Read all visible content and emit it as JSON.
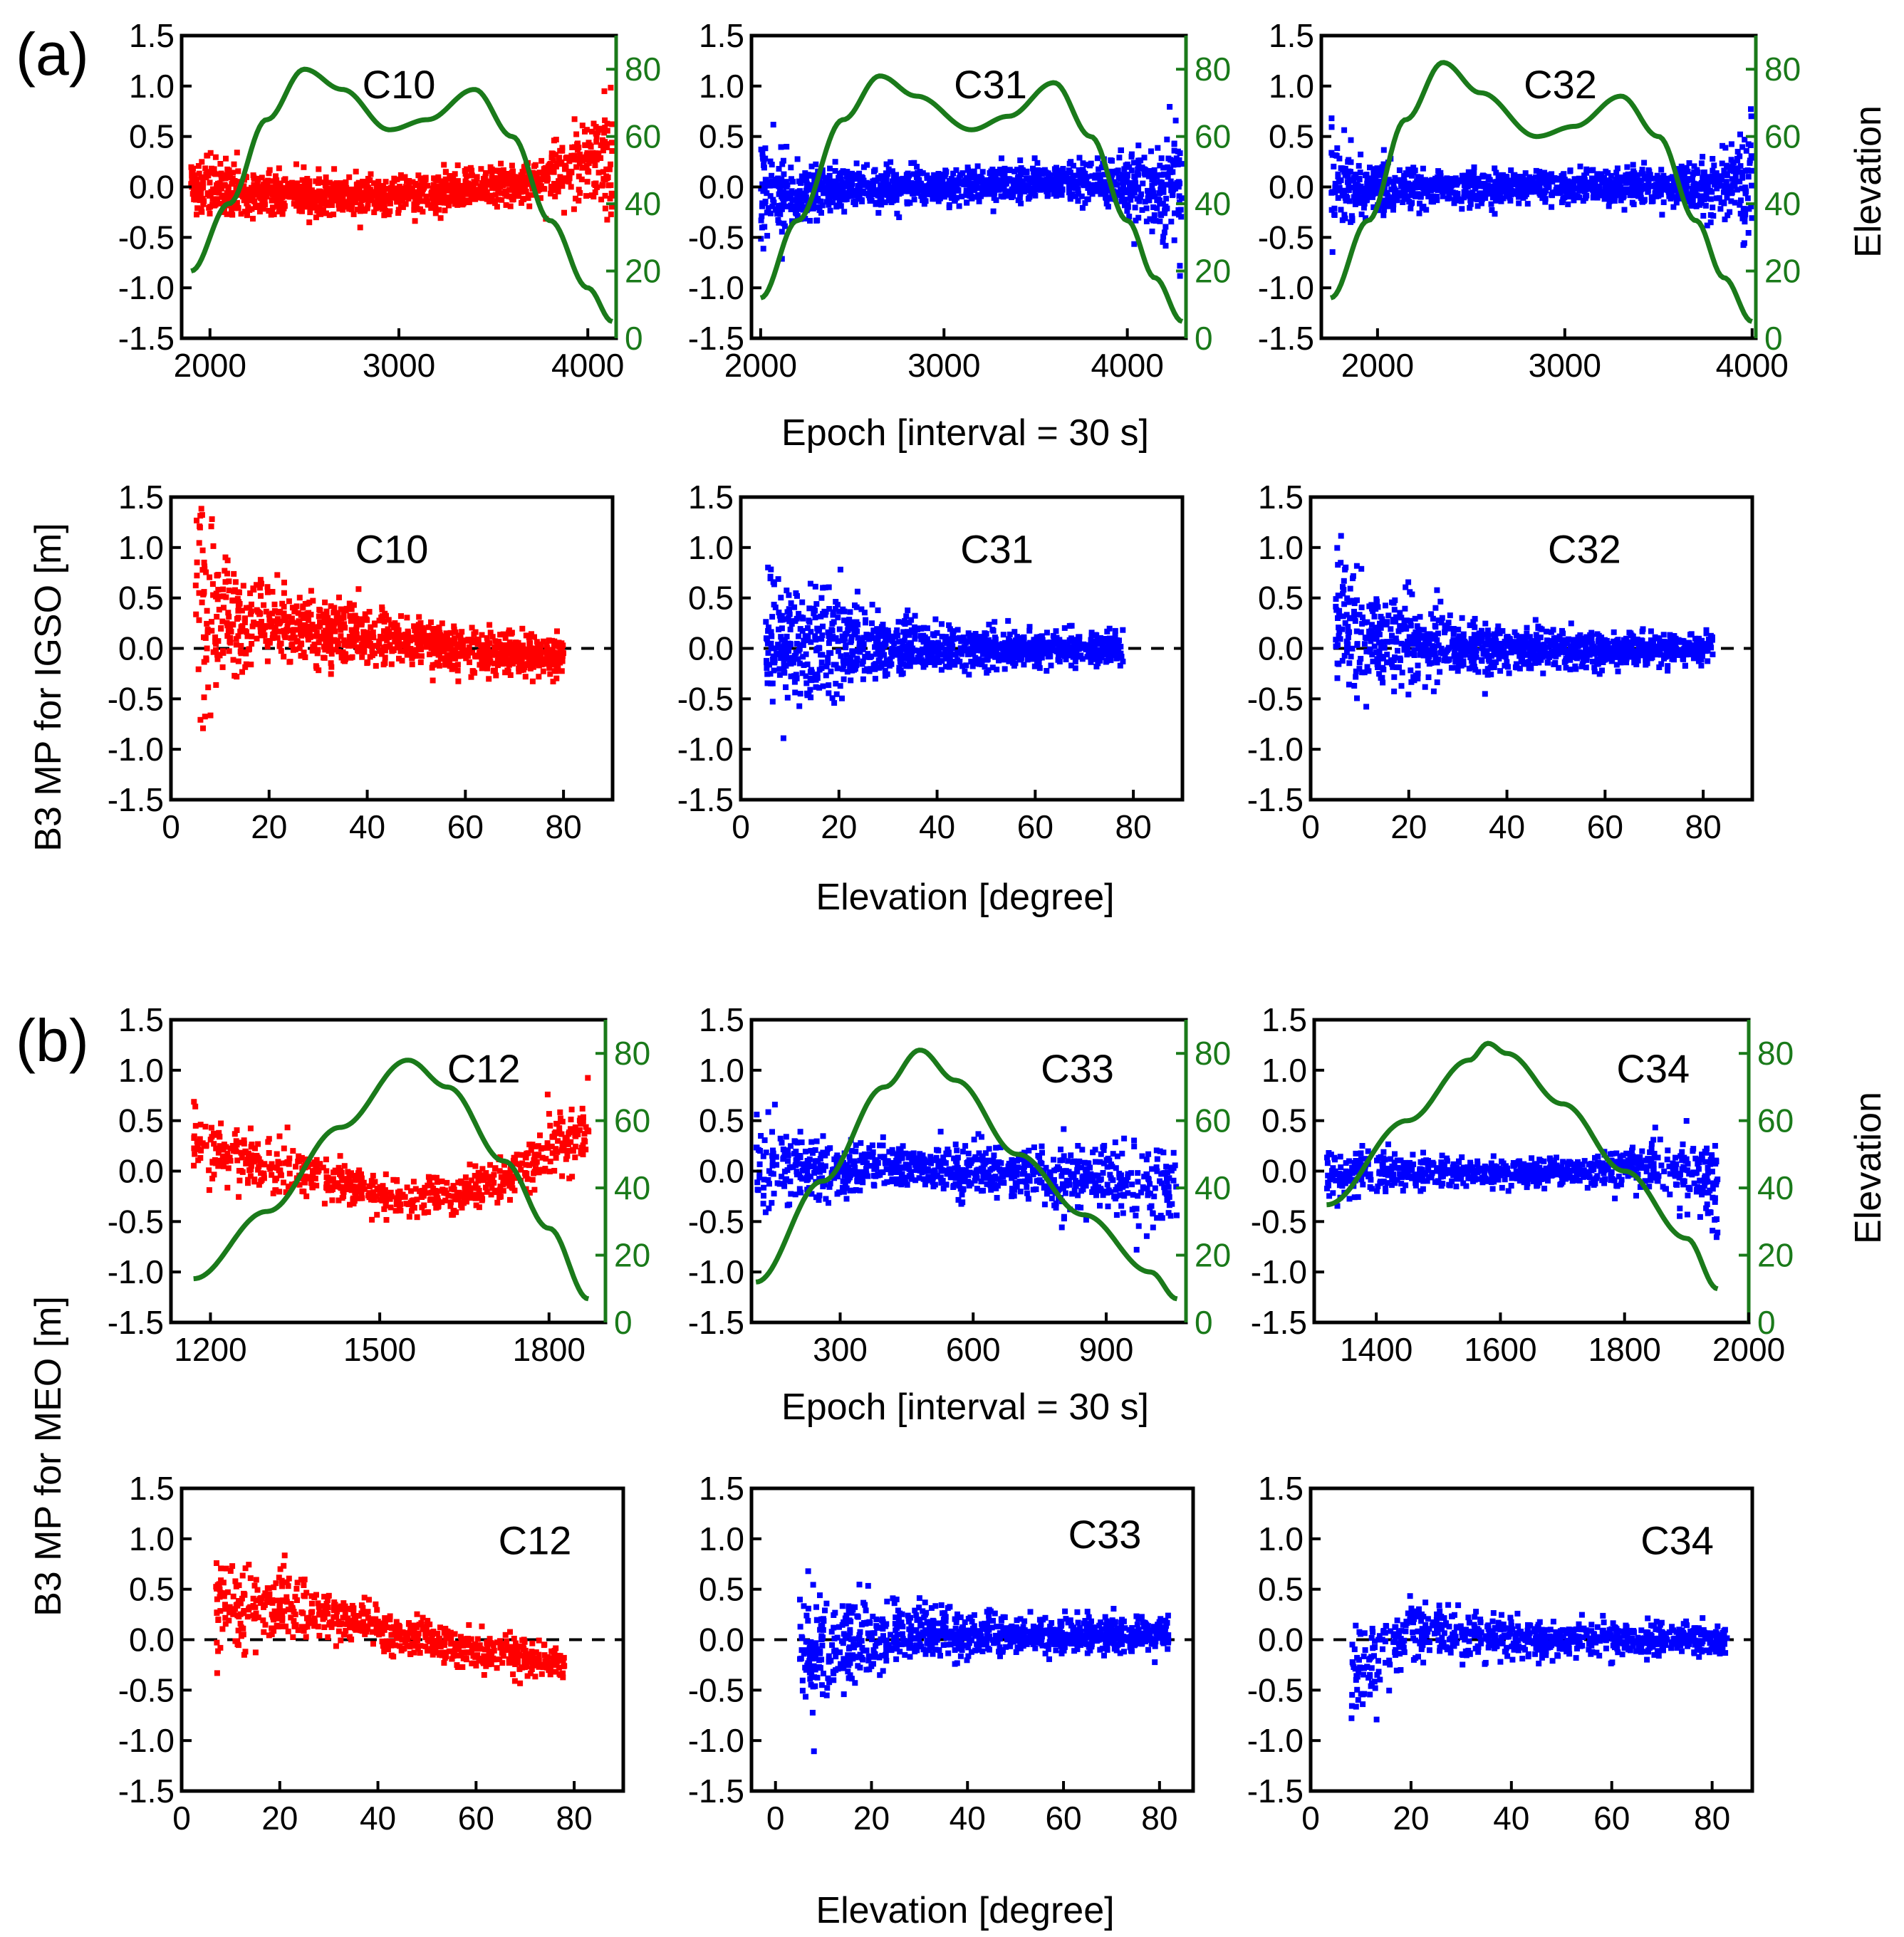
{
  "figure": {
    "group_a_label": "(a)",
    "group_b_label": "(b)",
    "ylabel_a": "B3 MP for IGSO [m]",
    "ylabel_b": "B3 MP for MEO [m]",
    "right_label": "Elevation",
    "epoch_xlabel": "Epoch [interval = 30 s]",
    "elev_xlabel": "Elevation [degree]",
    "colors": {
      "red": "#ff0000",
      "blue": "#0000ff",
      "green": "#1a7a1a",
      "axis": "#000000"
    }
  },
  "chart_data": [
    {
      "id": "a-top-C10",
      "type": "scatter",
      "title": "C10",
      "group": "a",
      "row": "epoch",
      "col": 0,
      "color": "red",
      "xlim": [
        1850,
        4150
      ],
      "xticks": [
        2000,
        3000,
        4000
      ],
      "ylim": [
        -1.5,
        1.5
      ],
      "yticks": [
        -1.5,
        -1.0,
        -0.5,
        0.0,
        0.5,
        1.0,
        1.5
      ],
      "y2lim": [
        0,
        90
      ],
      "y2ticks": [
        0,
        20,
        40,
        60,
        80
      ],
      "x_range": [
        1900,
        4130
      ],
      "elevation_curve": {
        "x": [
          1900,
          2100,
          2300,
          2500,
          2700,
          2950,
          3150,
          3400,
          3600,
          3800,
          4000,
          4130
        ],
        "y": [
          20,
          40,
          65,
          80,
          74,
          62,
          65,
          74,
          60,
          35,
          15,
          5
        ]
      },
      "noise_envelope": {
        "x": [
          1900,
          2200,
          2600,
          3000,
          3400,
          3700,
          3900,
          4050,
          4130
        ],
        "mean": [
          0.05,
          -0.05,
          -0.1,
          -0.08,
          -0.03,
          0.05,
          0.2,
          0.35,
          0.3
        ],
        "spread": [
          0.35,
          0.25,
          0.22,
          0.22,
          0.22,
          0.25,
          0.35,
          0.55,
          0.9
        ]
      },
      "points": 1300
    },
    {
      "id": "a-top-C31",
      "type": "scatter",
      "title": "C31",
      "group": "a",
      "row": "epoch",
      "col": 1,
      "color": "blue",
      "xlim": [
        1950,
        4320
      ],
      "xticks": [
        2000,
        3000,
        4000
      ],
      "ylim": [
        -1.5,
        1.5
      ],
      "yticks": [
        -1.5,
        -1.0,
        -0.5,
        0.0,
        0.5,
        1.0,
        1.5
      ],
      "y2lim": [
        0,
        90
      ],
      "y2ticks": [
        0,
        20,
        40,
        60,
        80
      ],
      "x_range": [
        2000,
        4300
      ],
      "elevation_curve": {
        "x": [
          2000,
          2200,
          2450,
          2650,
          2850,
          3150,
          3350,
          3600,
          3800,
          4000,
          4150,
          4300
        ],
        "y": [
          12,
          35,
          65,
          78,
          72,
          62,
          66,
          76,
          60,
          35,
          18,
          5
        ]
      },
      "noise_envelope": {
        "x": [
          2000,
          2150,
          2400,
          3000,
          3600,
          3900,
          4100,
          4300
        ],
        "mean": [
          0.0,
          -0.05,
          -0.02,
          0.0,
          0.05,
          0.05,
          0.0,
          0.0
        ],
        "spread": [
          0.8,
          0.4,
          0.25,
          0.2,
          0.22,
          0.3,
          0.5,
          0.8
        ]
      },
      "points": 1300
    },
    {
      "id": "a-top-C32",
      "type": "scatter",
      "title": "C32",
      "group": "a",
      "row": "epoch",
      "col": 2,
      "color": "blue",
      "xlim": [
        1700,
        4020
      ],
      "xticks": [
        2000,
        3000,
        4000
      ],
      "ylim": [
        -1.5,
        1.5
      ],
      "yticks": [
        -1.5,
        -1.0,
        -0.5,
        0.0,
        0.5,
        1.0,
        1.5
      ],
      "y2lim": [
        0,
        90
      ],
      "y2ticks": [
        0,
        20,
        40,
        60,
        80
      ],
      "x_range": [
        1750,
        4000
      ],
      "elevation_curve": {
        "x": [
          1750,
          1950,
          2150,
          2350,
          2550,
          2850,
          3050,
          3300,
          3500,
          3700,
          3850,
          4000
        ],
        "y": [
          12,
          35,
          65,
          82,
          73,
          60,
          63,
          72,
          60,
          35,
          18,
          5
        ]
      },
      "noise_envelope": {
        "x": [
          1750,
          1900,
          2200,
          2800,
          3400,
          3700,
          3900,
          4000
        ],
        "mean": [
          0.1,
          0.0,
          0.0,
          0.0,
          0.0,
          0.0,
          0.05,
          0.1
        ],
        "spread": [
          0.7,
          0.35,
          0.22,
          0.18,
          0.2,
          0.28,
          0.45,
          0.8
        ]
      },
      "points": 1300
    },
    {
      "id": "a-bot-C10",
      "type": "scatter",
      "title": "C10",
      "group": "a",
      "row": "elevation",
      "col": 0,
      "color": "red",
      "xlim": [
        0,
        90
      ],
      "xticks": [
        0,
        20,
        40,
        60,
        80
      ],
      "ylim": [
        -1.5,
        1.5
      ],
      "yticks": [
        -1.5,
        -1.0,
        -0.5,
        0.0,
        0.5,
        1.0,
        1.5
      ],
      "zero_line": true,
      "x_range": [
        5,
        80
      ],
      "noise_envelope": {
        "x": [
          5,
          8,
          12,
          20,
          35,
          50,
          65,
          80
        ],
        "mean": [
          0.6,
          0.3,
          0.25,
          0.25,
          0.15,
          0.05,
          -0.05,
          -0.1
        ],
        "spread": [
          1.3,
          1.1,
          0.6,
          0.45,
          0.35,
          0.28,
          0.25,
          0.2
        ]
      },
      "points": 1100
    },
    {
      "id": "a-bot-C31",
      "type": "scatter",
      "title": "C31",
      "group": "a",
      "row": "elevation",
      "col": 1,
      "color": "blue",
      "xlim": [
        0,
        90
      ],
      "xticks": [
        0,
        20,
        40,
        60,
        80
      ],
      "ylim": [
        -1.5,
        1.5
      ],
      "yticks": [
        -1.5,
        -1.0,
        -0.5,
        0.0,
        0.5,
        1.0,
        1.5
      ],
      "zero_line": true,
      "x_range": [
        5,
        78
      ],
      "noise_envelope": {
        "x": [
          5,
          10,
          20,
          30,
          45,
          60,
          78
        ],
        "mean": [
          0.0,
          0.05,
          0.05,
          0.0,
          0.0,
          0.0,
          0.0
        ],
        "spread": [
          1.0,
          0.7,
          0.55,
          0.35,
          0.25,
          0.22,
          0.18
        ]
      },
      "points": 1100
    },
    {
      "id": "a-bot-C32",
      "type": "scatter",
      "title": "C32",
      "group": "a",
      "row": "elevation",
      "col": 2,
      "color": "blue",
      "xlim": [
        0,
        90
      ],
      "xticks": [
        0,
        20,
        40,
        60,
        80
      ],
      "ylim": [
        -1.5,
        1.5
      ],
      "yticks": [
        -1.5,
        -1.0,
        -0.5,
        0.0,
        0.5,
        1.0,
        1.5
      ],
      "zero_line": true,
      "x_range": [
        5,
        82
      ],
      "noise_envelope": {
        "x": [
          5,
          10,
          20,
          35,
          50,
          65,
          82
        ],
        "mean": [
          0.4,
          0.1,
          0.05,
          0.0,
          0.0,
          0.0,
          0.0
        ],
        "spread": [
          0.9,
          0.7,
          0.45,
          0.3,
          0.22,
          0.2,
          0.18
        ]
      },
      "points": 1100
    },
    {
      "id": "b-top-C12",
      "type": "scatter",
      "title": "C12",
      "group": "b",
      "row": "epoch",
      "col": 0,
      "color": "red",
      "xlim": [
        1130,
        1900
      ],
      "xticks": [
        1200,
        1500,
        1800
      ],
      "ylim": [
        -1.5,
        1.5
      ],
      "yticks": [
        -1.5,
        -1.0,
        -0.5,
        0.0,
        0.5,
        1.0,
        1.5
      ],
      "y2lim": [
        0,
        90
      ],
      "y2ticks": [
        0,
        20,
        40,
        60,
        80
      ],
      "x_range": [
        1170,
        1870
      ],
      "elevation_curve": {
        "x": [
          1170,
          1300,
          1430,
          1550,
          1620,
          1720,
          1800,
          1870
        ],
        "y": [
          13,
          33,
          58,
          78,
          70,
          48,
          28,
          7
        ]
      },
      "noise_envelope": {
        "x": [
          1170,
          1300,
          1450,
          1550,
          1650,
          1750,
          1820,
          1870
        ],
        "mean": [
          0.25,
          0.05,
          -0.15,
          -0.3,
          -0.2,
          0.0,
          0.3,
          0.35
        ],
        "spread": [
          0.35,
          0.3,
          0.22,
          0.2,
          0.2,
          0.3,
          0.35,
          0.5
        ]
      },
      "points": 700
    },
    {
      "id": "b-top-C33",
      "type": "scatter",
      "title": "C33",
      "group": "b",
      "row": "epoch",
      "col": 1,
      "color": "blue",
      "xlim": [
        100,
        1080
      ],
      "xticks": [
        300,
        600,
        900
      ],
      "ylim": [
        -1.5,
        1.5
      ],
      "yticks": [
        -1.5,
        -1.0,
        -0.5,
        0.0,
        0.5,
        1.0,
        1.5
      ],
      "y2lim": [
        0,
        90
      ],
      "y2ticks": [
        0,
        20,
        40,
        60,
        80
      ],
      "x_range": [
        110,
        1060
      ],
      "elevation_curve": {
        "x": [
          110,
          260,
          400,
          480,
          560,
          700,
          850,
          1000,
          1060
        ],
        "y": [
          12,
          42,
          70,
          81,
          72,
          50,
          32,
          15,
          7
        ]
      },
      "noise_envelope": {
        "x": [
          110,
          250,
          450,
          650,
          850,
          1000,
          1060
        ],
        "mean": [
          0.1,
          0.0,
          0.05,
          0.0,
          -0.05,
          -0.15,
          -0.2
        ],
        "spread": [
          0.6,
          0.35,
          0.22,
          0.3,
          0.4,
          0.5,
          0.6
        ]
      },
      "points": 900
    },
    {
      "id": "b-top-C34",
      "type": "scatter",
      "title": "C34",
      "group": "b",
      "row": "epoch",
      "col": 2,
      "color": "blue",
      "xlim": [
        1300,
        2000
      ],
      "xticks": [
        1400,
        1600,
        1800,
        2000
      ],
      "ylim": [
        -1.5,
        1.5
      ],
      "yticks": [
        -1.5,
        -1.0,
        -0.5,
        0.0,
        0.5,
        1.0,
        1.5
      ],
      "y2lim": [
        0,
        90
      ],
      "y2ticks": [
        0,
        20,
        40,
        60,
        80
      ],
      "x_range": [
        1320,
        1950
      ],
      "elevation_curve": {
        "x": [
          1320,
          1450,
          1550,
          1580,
          1610,
          1700,
          1800,
          1900,
          1950
        ],
        "y": [
          35,
          60,
          78,
          83,
          80,
          65,
          45,
          25,
          10
        ]
      },
      "noise_envelope": {
        "x": [
          1320,
          1450,
          1600,
          1750,
          1850,
          1920,
          1950
        ],
        "mean": [
          -0.05,
          0.0,
          -0.02,
          0.0,
          0.05,
          0.0,
          -0.2
        ],
        "spread": [
          0.35,
          0.2,
          0.15,
          0.18,
          0.3,
          0.45,
          0.55
        ]
      },
      "points": 800
    },
    {
      "id": "b-bot-C12",
      "type": "scatter",
      "title": "C12",
      "group": "b",
      "row": "elevation",
      "col": 0,
      "color": "red",
      "xlim": [
        0,
        90
      ],
      "xticks": [
        0,
        20,
        40,
        60,
        80
      ],
      "ylim": [
        -1.5,
        1.5
      ],
      "yticks": [
        -1.5,
        -1.0,
        -0.5,
        0.0,
        0.5,
        1.0,
        1.5
      ],
      "zero_line": true,
      "x_range": [
        7,
        78
      ],
      "noise_envelope": {
        "x": [
          7,
          12,
          20,
          30,
          45,
          60,
          78
        ],
        "mean": [
          0.35,
          0.3,
          0.35,
          0.25,
          0.05,
          -0.1,
          -0.25
        ],
        "spread": [
          0.65,
          0.5,
          0.35,
          0.3,
          0.25,
          0.22,
          0.2
        ]
      },
      "points": 700
    },
    {
      "id": "b-bot-C33",
      "type": "scatter",
      "title": "C33",
      "group": "b",
      "row": "elevation",
      "col": 1,
      "color": "blue",
      "xlim": [
        -5,
        87
      ],
      "xticks": [
        0,
        20,
        40,
        60,
        80
      ],
      "ylim": [
        -1.5,
        1.5
      ],
      "yticks": [
        -1.5,
        -1.0,
        -0.5,
        0.0,
        0.5,
        1.0,
        1.5
      ],
      "zero_line": true,
      "x_range": [
        5,
        82
      ],
      "noise_envelope": {
        "x": [
          5,
          10,
          15,
          25,
          40,
          60,
          82
        ],
        "mean": [
          -0.2,
          -0.1,
          0.0,
          0.05,
          0.05,
          0.05,
          0.05
        ],
        "spread": [
          0.75,
          0.6,
          0.5,
          0.35,
          0.25,
          0.22,
          0.2
        ]
      },
      "points": 1000
    },
    {
      "id": "b-bot-C34",
      "type": "scatter",
      "title": "C34",
      "group": "b",
      "row": "elevation",
      "col": 2,
      "color": "blue",
      "xlim": [
        0,
        88
      ],
      "xticks": [
        0,
        20,
        40,
        60,
        80
      ],
      "ylim": [
        -1.5,
        1.5
      ],
      "yticks": [
        -1.5,
        -1.0,
        -0.5,
        0.0,
        0.5,
        1.0,
        1.5
      ],
      "zero_line": true,
      "x_range": [
        8,
        83
      ],
      "noise_envelope": {
        "x": [
          8,
          12,
          20,
          30,
          45,
          60,
          83
        ],
        "mean": [
          -0.45,
          -0.2,
          0.1,
          0.05,
          0.0,
          0.0,
          0.0
        ],
        "spread": [
          0.5,
          0.45,
          0.35,
          0.28,
          0.22,
          0.2,
          0.18
        ]
      },
      "points": 800
    }
  ]
}
